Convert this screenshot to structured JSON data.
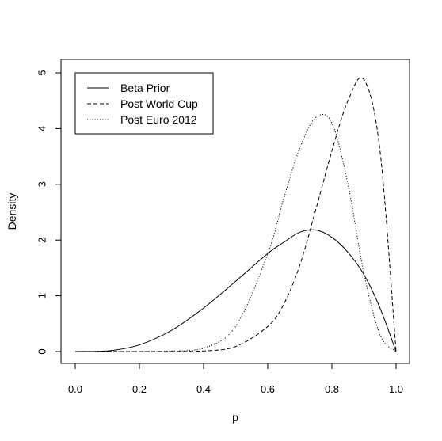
{
  "chart_data": {
    "type": "line",
    "title": "",
    "xlabel": "p",
    "ylabel": "Density",
    "xlim": [
      0,
      1
    ],
    "ylim": [
      0,
      5
    ],
    "xticks": [
      "0.0",
      "0.2",
      "0.4",
      "0.6",
      "0.8",
      "1.0"
    ],
    "yticks": [
      "0",
      "1",
      "2",
      "3",
      "4",
      "5"
    ],
    "grid": false,
    "legend_position": "top-left",
    "x": [
      0.0,
      0.1,
      0.2,
      0.3,
      0.4,
      0.5,
      0.6,
      0.65,
      0.7,
      0.75,
      0.8,
      0.85,
      0.9,
      0.95,
      1.0
    ],
    "series": [
      {
        "name": "Beta Prior",
        "line_style": "solid",
        "values": [
          0.0,
          0.01,
          0.12,
          0.38,
          0.78,
          1.26,
          1.76,
          1.96,
          2.14,
          2.18,
          2.05,
          1.78,
          1.38,
          0.78,
          0.0
        ]
      },
      {
        "name": "Post World Cup",
        "line_style": "dashed",
        "values": [
          0.0,
          0.0,
          0.0,
          0.0,
          0.01,
          0.09,
          0.45,
          0.85,
          1.55,
          2.55,
          3.6,
          4.5,
          4.88,
          3.6,
          0.0
        ]
      },
      {
        "name": "Post Euro 2012",
        "line_style": "dotted",
        "values": [
          0.0,
          0.0,
          0.0,
          0.01,
          0.06,
          0.45,
          1.75,
          2.75,
          3.65,
          4.2,
          4.1,
          3.0,
          1.4,
          0.3,
          0.0
        ]
      }
    ]
  }
}
